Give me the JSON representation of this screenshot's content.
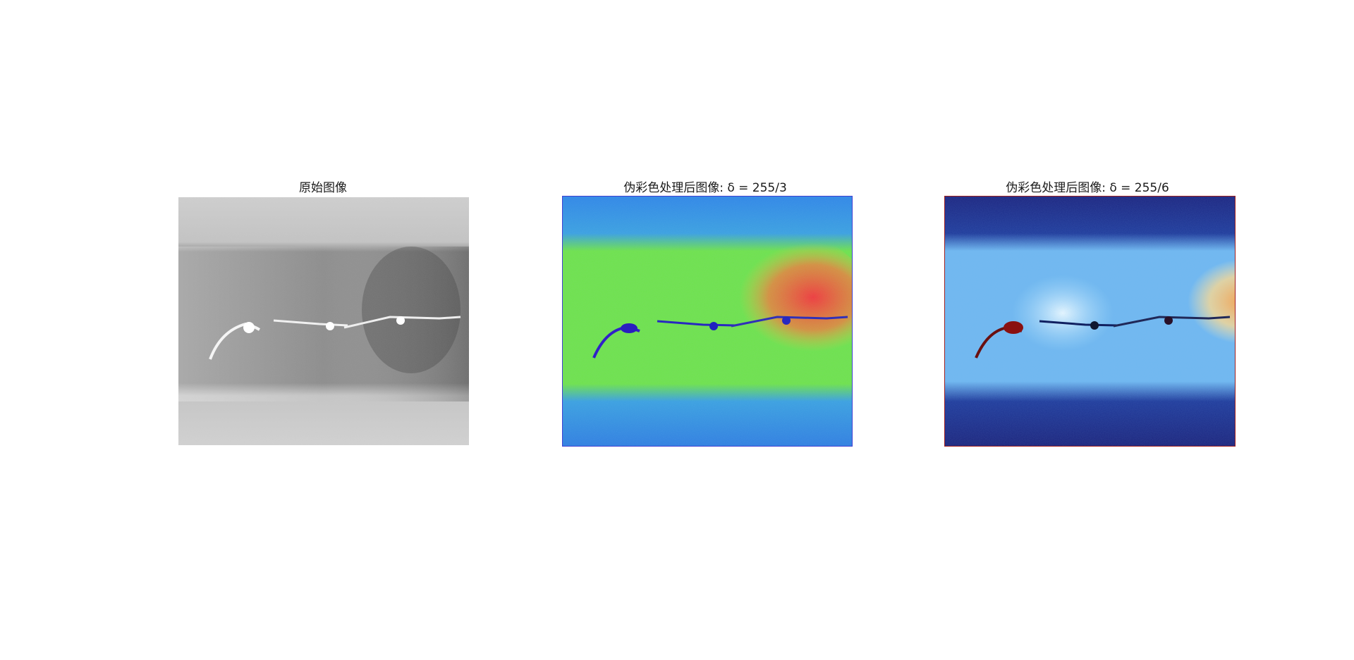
{
  "figure": {
    "panels": [
      {
        "title": "原始图像",
        "colormap": "gray",
        "image_desc_colors": {
          "background": "#d9d9d9",
          "band": "#7a7a7a",
          "crack": "#ffffff"
        }
      },
      {
        "title": "伪彩色处理后图像: δ = 255/3",
        "colormap": "jet",
        "image_desc_colors": {
          "background": "#3a7fe0",
          "band_left": "#5ee04a",
          "band_right": "#f05040",
          "crack": "#2a2ad0"
        }
      },
      {
        "title": "伪彩色处理后图像: δ = 255/6",
        "colormap": "jet-dark",
        "image_desc_colors": {
          "background": "#1a2a8a",
          "band_left": "#a0d8f8",
          "band_right": "#f8b060",
          "crack": "#8a1010"
        }
      }
    ]
  }
}
